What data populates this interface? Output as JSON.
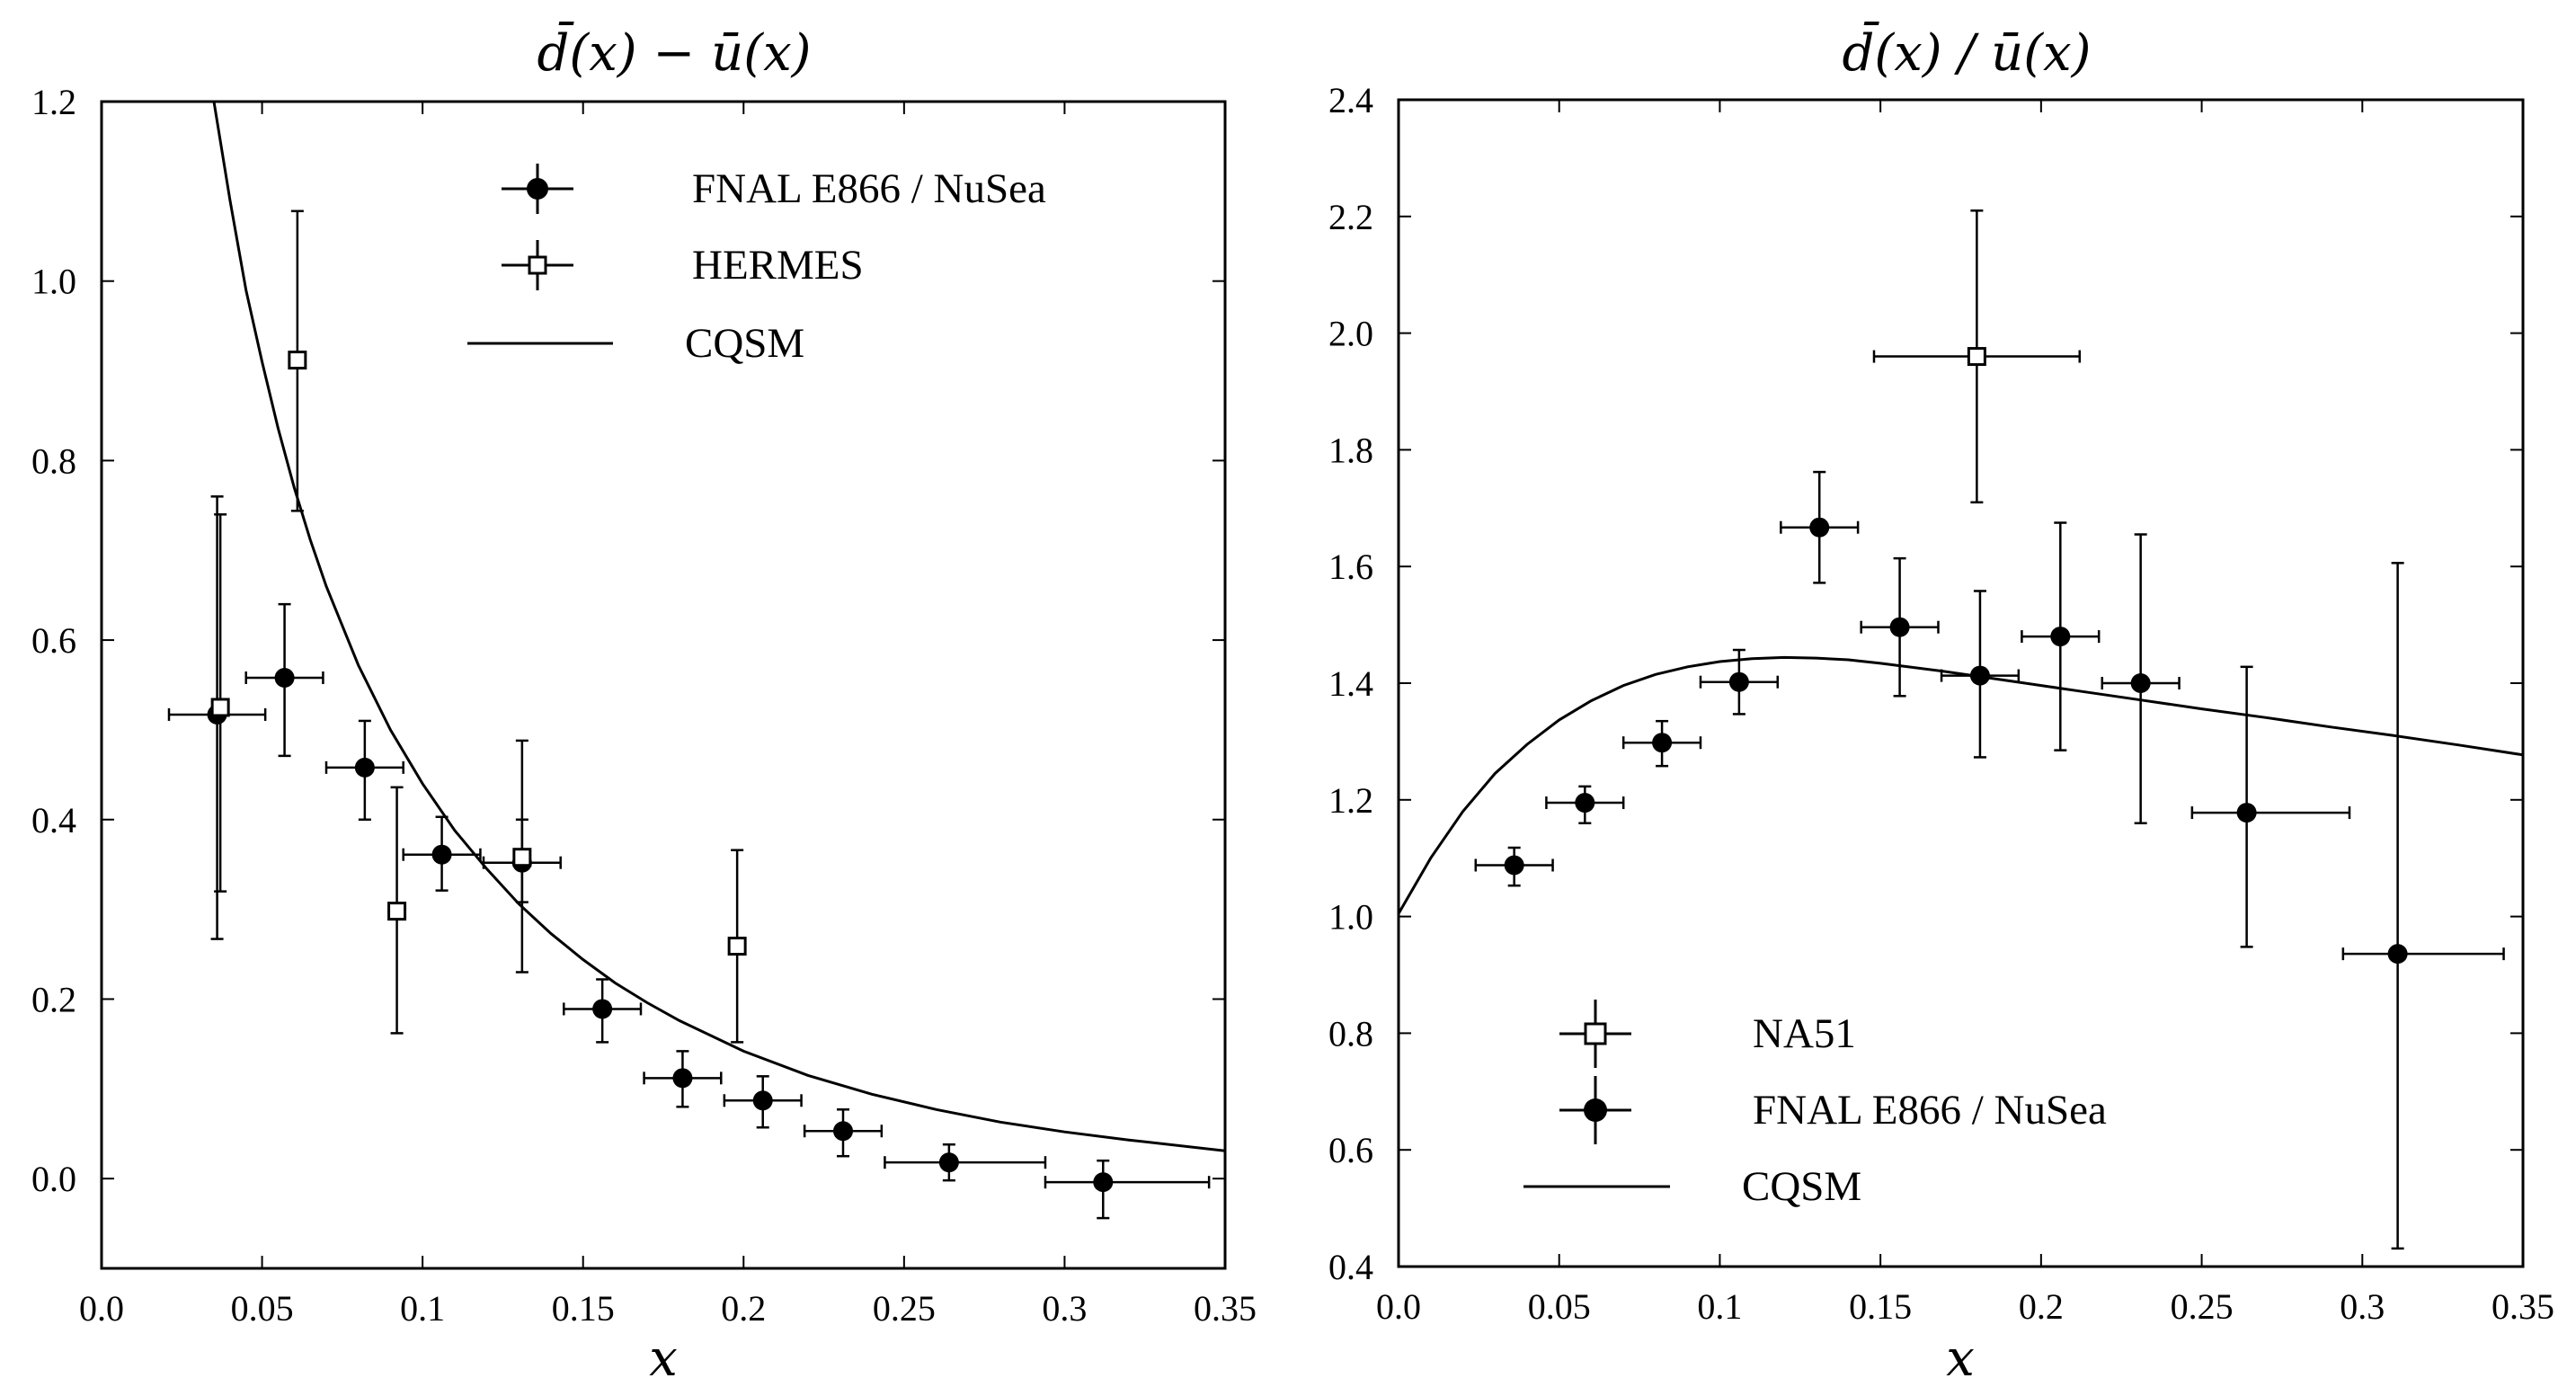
{
  "chart_data": [
    {
      "type": "scatter",
      "title": "d̄(x) − ū(x)",
      "xlabel": "x",
      "ylabel": "",
      "xlim": [
        0.0,
        0.35
      ],
      "ylim": [
        -0.1,
        1.2
      ],
      "xticks": [
        "0.0",
        "0.05",
        "0.1",
        "0.15",
        "0.2",
        "0.25",
        "0.3",
        "0.35"
      ],
      "xtick_values": [
        0.0,
        0.05,
        0.1,
        0.15,
        0.2,
        0.25,
        0.3,
        0.35
      ],
      "yticks": [
        "0.0",
        "0.2",
        "0.4",
        "0.6",
        "0.8",
        "1.0",
        "1.2"
      ],
      "ytick_values": [
        0.0,
        0.2,
        0.4,
        0.6,
        0.8,
        1.0,
        1.2
      ],
      "grid": false,
      "legend": [
        {
          "label": "FNAL E866 / NuSea",
          "marker": "filled-circle"
        },
        {
          "label": "HERMES",
          "marker": "open-square"
        },
        {
          "label": "CQSM",
          "marker": "line"
        }
      ],
      "series": [
        {
          "name": "FNAL E866 / NuSea",
          "marker": "filled-circle",
          "points": [
            {
              "x": 0.036,
              "y": 0.517,
              "xerr": [
                0.015,
                0.015
              ],
              "yerr": [
                0.25,
                0.243
              ]
            },
            {
              "x": 0.057,
              "y": 0.558,
              "xerr": [
                0.012,
                0.012
              ],
              "yerr": [
                0.087,
                0.082
              ]
            },
            {
              "x": 0.082,
              "y": 0.458,
              "xerr": [
                0.012,
                0.012
              ],
              "yerr": [
                0.058,
                0.052
              ]
            },
            {
              "x": 0.106,
              "y": 0.361,
              "xerr": [
                0.012,
                0.012
              ],
              "yerr": [
                0.04,
                0.042
              ]
            },
            {
              "x": 0.131,
              "y": 0.352,
              "xerr": [
                0.012,
                0.012
              ],
              "yerr": [
                0.122,
                0.048
              ]
            },
            {
              "x": 0.156,
              "y": 0.189,
              "xerr": [
                0.012,
                0.012
              ],
              "yerr": [
                0.037,
                0.033
              ]
            },
            {
              "x": 0.181,
              "y": 0.112,
              "xerr": [
                0.012,
                0.012
              ],
              "yerr": [
                0.032,
                0.03
              ]
            },
            {
              "x": 0.206,
              "y": 0.087,
              "xerr": [
                0.012,
                0.012
              ],
              "yerr": [
                0.03,
                0.027
              ]
            },
            {
              "x": 0.231,
              "y": 0.053,
              "xerr": [
                0.012,
                0.012
              ],
              "yerr": [
                0.028,
                0.024
              ]
            },
            {
              "x": 0.264,
              "y": 0.018,
              "xerr": [
                0.02,
                0.03
              ],
              "yerr": [
                0.02,
                0.02
              ]
            },
            {
              "x": 0.312,
              "y": -0.004,
              "xerr": [
                0.018,
                0.033
              ],
              "yerr": [
                0.04,
                0.024
              ]
            }
          ]
        },
        {
          "name": "HERMES",
          "marker": "open-square",
          "points": [
            {
              "x": 0.037,
              "y": 0.525,
              "xerr": [
                0.0,
                0.0
              ],
              "yerr": [
                0.205,
                0.215
              ]
            },
            {
              "x": 0.061,
              "y": 0.912,
              "xerr": [
                0.0,
                0.0
              ],
              "yerr": [
                0.168,
                0.166
              ]
            },
            {
              "x": 0.092,
              "y": 0.298,
              "xerr": [
                0.0,
                0.0
              ],
              "yerr": [
                0.136,
                0.138
              ]
            },
            {
              "x": 0.131,
              "y": 0.358,
              "xerr": [
                0.0,
                0.0
              ],
              "yerr": [
                0.05,
                0.13
              ]
            },
            {
              "x": 0.198,
              "y": 0.259,
              "xerr": [
                0.0,
                0.0
              ],
              "yerr": [
                0.107,
                0.107
              ]
            }
          ]
        },
        {
          "name": "CQSM",
          "marker": "line",
          "x": [
            0.035,
            0.04,
            0.045,
            0.05,
            0.055,
            0.06,
            0.065,
            0.07,
            0.08,
            0.09,
            0.1,
            0.11,
            0.12,
            0.13,
            0.14,
            0.15,
            0.16,
            0.17,
            0.18,
            0.2,
            0.22,
            0.24,
            0.26,
            0.28,
            0.3,
            0.32,
            0.35
          ],
          "y": [
            1.2,
            1.09,
            0.99,
            0.91,
            0.836,
            0.77,
            0.712,
            0.66,
            0.572,
            0.5,
            0.44,
            0.388,
            0.345,
            0.306,
            0.273,
            0.244,
            0.218,
            0.196,
            0.176,
            0.142,
            0.115,
            0.094,
            0.077,
            0.063,
            0.052,
            0.043,
            0.031
          ]
        }
      ]
    },
    {
      "type": "scatter",
      "title": "d̄(x) / ū(x)",
      "xlabel": "x",
      "ylabel": "",
      "xlim": [
        0.0,
        0.35
      ],
      "ylim": [
        0.4,
        2.4
      ],
      "xticks": [
        "0.0",
        "0.05",
        "0.1",
        "0.15",
        "0.2",
        "0.25",
        "0.3",
        "0.35"
      ],
      "xtick_values": [
        0.0,
        0.05,
        0.1,
        0.15,
        0.2,
        0.25,
        0.3,
        0.35
      ],
      "yticks": [
        "0.4",
        "0.6",
        "0.8",
        "1.0",
        "1.2",
        "1.4",
        "1.6",
        "1.8",
        "2.0",
        "2.2",
        "2.4"
      ],
      "ytick_values": [
        0.4,
        0.6,
        0.8,
        1.0,
        1.2,
        1.4,
        1.6,
        1.8,
        2.0,
        2.2,
        2.4
      ],
      "grid": false,
      "legend": [
        {
          "label": "NA51",
          "marker": "open-square"
        },
        {
          "label": "FNAL E866 / NuSea",
          "marker": "filled-circle"
        },
        {
          "label": "CQSM",
          "marker": "line"
        }
      ],
      "series": [
        {
          "name": "NA51",
          "marker": "open-square",
          "points": [
            {
              "x": 0.18,
              "y": 1.96,
              "xerr": [
                0.032,
                0.032
              ],
              "yerr": [
                0.25,
                0.25
              ]
            }
          ]
        },
        {
          "name": "FNAL E866 / NuSea",
          "marker": "filled-circle",
          "points": [
            {
              "x": 0.036,
              "y": 1.088,
              "xerr": [
                0.012,
                0.012
              ],
              "yerr": [
                0.035,
                0.03
              ]
            },
            {
              "x": 0.058,
              "y": 1.195,
              "xerr": [
                0.012,
                0.012
              ],
              "yerr": [
                0.035,
                0.028
              ]
            },
            {
              "x": 0.082,
              "y": 1.298,
              "xerr": [
                0.012,
                0.012
              ],
              "yerr": [
                0.04,
                0.037
              ]
            },
            {
              "x": 0.106,
              "y": 1.402,
              "xerr": [
                0.012,
                0.012
              ],
              "yerr": [
                0.055,
                0.055
              ]
            },
            {
              "x": 0.131,
              "y": 1.667,
              "xerr": [
                0.012,
                0.012
              ],
              "yerr": [
                0.095,
                0.095
              ]
            },
            {
              "x": 0.156,
              "y": 1.496,
              "xerr": [
                0.012,
                0.012
              ],
              "yerr": [
                0.118,
                0.118
              ]
            },
            {
              "x": 0.181,
              "y": 1.413,
              "xerr": [
                0.012,
                0.012
              ],
              "yerr": [
                0.14,
                0.145
              ]
            },
            {
              "x": 0.206,
              "y": 1.48,
              "xerr": [
                0.012,
                0.012
              ],
              "yerr": [
                0.195,
                0.195
              ]
            },
            {
              "x": 0.231,
              "y": 1.4,
              "xerr": [
                0.012,
                0.012
              ],
              "yerr": [
                0.24,
                0.255
              ]
            },
            {
              "x": 0.264,
              "y": 1.178,
              "xerr": [
                0.017,
                0.032
              ],
              "yerr": [
                0.23,
                0.25
              ]
            },
            {
              "x": 0.311,
              "y": 0.936,
              "xerr": [
                0.017,
                0.033
              ],
              "yerr": [
                0.505,
                0.67
              ]
            }
          ]
        },
        {
          "name": "CQSM",
          "marker": "line",
          "x": [
            0.0,
            0.01,
            0.02,
            0.03,
            0.04,
            0.05,
            0.06,
            0.07,
            0.08,
            0.09,
            0.1,
            0.11,
            0.12,
            0.13,
            0.14,
            0.15,
            0.17,
            0.19,
            0.21,
            0.23,
            0.25,
            0.27,
            0.29,
            0.31,
            0.33,
            0.35
          ],
          "y": [
            1.005,
            1.1,
            1.18,
            1.245,
            1.295,
            1.337,
            1.37,
            1.396,
            1.415,
            1.428,
            1.437,
            1.442,
            1.444,
            1.443,
            1.44,
            1.434,
            1.42,
            1.404,
            1.388,
            1.372,
            1.356,
            1.341,
            1.325,
            1.31,
            1.294,
            1.277
          ]
        }
      ]
    }
  ]
}
